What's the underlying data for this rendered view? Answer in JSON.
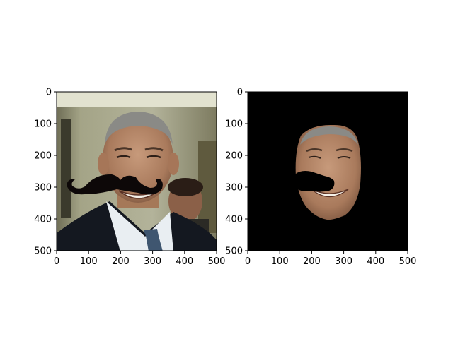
{
  "chart_data": [
    {
      "type": "image",
      "title": "",
      "xlabel": "",
      "ylabel": "",
      "xlim": [
        0,
        500
      ],
      "ylim": [
        500,
        0
      ],
      "x_ticks": [
        0,
        100,
        200,
        300,
        400,
        500
      ],
      "y_ticks": [
        0,
        100,
        200,
        300,
        400,
        500
      ],
      "x_tick_labels": [
        "0",
        "100",
        "200",
        "300",
        "400",
        "500"
      ],
      "y_tick_labels": [
        "0",
        "100",
        "200",
        "300",
        "400",
        "500"
      ],
      "grid": false,
      "legend": "none"
    },
    {
      "type": "image",
      "title": "",
      "xlabel": "",
      "ylabel": "",
      "xlim": [
        0,
        500
      ],
      "ylim": [
        500,
        0
      ],
      "x_ticks": [
        0,
        100,
        200,
        300,
        400,
        500
      ],
      "y_ticks": [
        0,
        100,
        200,
        300,
        400,
        500
      ],
      "x_tick_labels": [
        "0",
        "100",
        "200",
        "300",
        "400",
        "500"
      ],
      "y_tick_labels": [
        "0",
        "100",
        "200",
        "300",
        "400",
        "500"
      ],
      "grid": false,
      "legend": "none",
      "background_color": "#000000"
    }
  ]
}
